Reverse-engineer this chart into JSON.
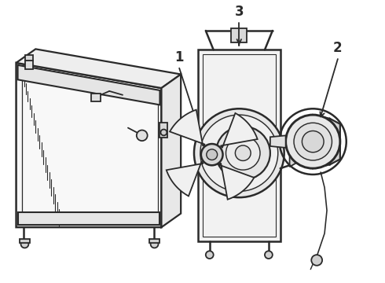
{
  "background_color": "#ffffff",
  "line_color": "#2a2a2a",
  "line_width": 1.3,
  "fig_width": 4.9,
  "fig_height": 3.6,
  "dpi": 100,
  "label_1": "1",
  "label_2": "2",
  "label_3": "3"
}
